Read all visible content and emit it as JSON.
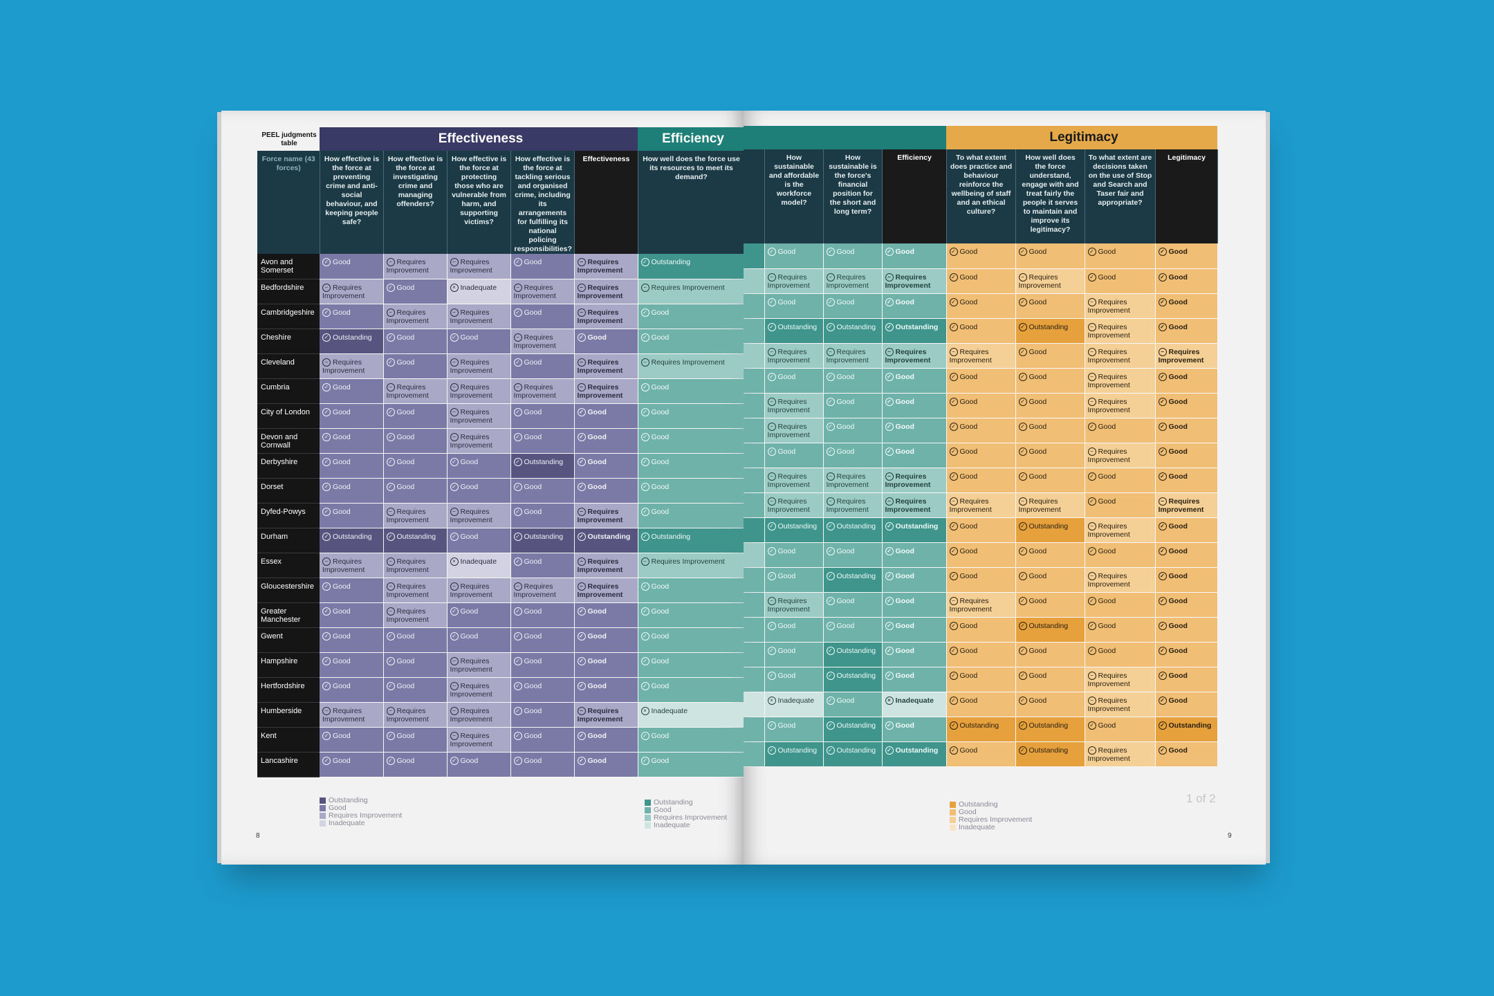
{
  "header": {
    "corner_title": "PEEL judgments table",
    "force_col_label": "Force name (43 forces)",
    "band_effectiveness": "Effectiveness",
    "band_efficiency": "Efficiency",
    "band_legitimacy": "Legitimacy"
  },
  "questions": {
    "eff": [
      "How effective is the force at preventing crime and anti-social behaviour, and keeping people safe?",
      "How effective is the force at investigating crime and managing offenders?",
      "How effective is the force at protecting those who are vulnerable from harm, and supporting victims?",
      "How effective is the force at tackling serious and organised crime, including its arrangements for fulfilling its national policing responsibilities?",
      "Effectiveness"
    ],
    "effi": [
      "How well does the force use its resources to meet its demand?",
      "How sustainable and affordable is the workforce model?",
      "How sustainable is the force's financial position for the short and long term?",
      "Efficiency"
    ],
    "leg": [
      "To what extent does practice and behaviour reinforce the wellbeing of staff and an ethical culture?",
      "How well does the force understand, engage with and treat fairly the people it serves to maintain and improve its legitimacy?",
      "To what extent are decisions taken on the use of Stop and Search and Taser fair and appropriate?",
      "Legitimacy"
    ]
  },
  "forces": [
    {
      "name": "Avon and Somerset",
      "eff": [
        "Good",
        "Requires Improvement",
        "Requires Improvement",
        "Good",
        "Requires Improvement"
      ],
      "effi": [
        "Outstanding",
        "Good",
        "Good",
        "Good"
      ],
      "leg": [
        "Good",
        "Good",
        "Good",
        "Good"
      ]
    },
    {
      "name": "Bedfordshire",
      "eff": [
        "Requires Improvement",
        "Good",
        "Inadequate",
        "Requires Improvement",
        "Requires Improvement"
      ],
      "effi": [
        "Requires Improvement",
        "Requires Improvement",
        "Requires Improvement",
        "Requires Improvement"
      ],
      "leg": [
        "Good",
        "Requires Improvement",
        "Good",
        "Good"
      ]
    },
    {
      "name": "Cambridgeshire",
      "eff": [
        "Good",
        "Requires Improvement",
        "Requires Improvement",
        "Good",
        "Requires Improvement"
      ],
      "effi": [
        "Good",
        "Good",
        "Good",
        "Good"
      ],
      "leg": [
        "Good",
        "Good",
        "Requires Improvement",
        "Good"
      ]
    },
    {
      "name": "Cheshire",
      "eff": [
        "Outstanding",
        "Good",
        "Good",
        "Requires Improvement",
        "Good"
      ],
      "effi": [
        "Good",
        "Outstanding",
        "Outstanding",
        "Outstanding"
      ],
      "leg": [
        "Good",
        "Outstanding",
        "Requires Improvement",
        "Good"
      ]
    },
    {
      "name": "Cleveland",
      "eff": [
        "Requires Improvement",
        "Good",
        "Requires Improvement",
        "Good",
        "Requires Improvement"
      ],
      "effi": [
        "Requires Improvement",
        "Requires Improvement",
        "Requires Improvement",
        "Requires Improvement"
      ],
      "leg": [
        "Requires Improvement",
        "Good",
        "Requires Improvement",
        "Requires Improvement"
      ]
    },
    {
      "name": "Cumbria",
      "eff": [
        "Good",
        "Requires Improvement",
        "Requires Improvement",
        "Requires Improvement",
        "Requires Improvement"
      ],
      "effi": [
        "Good",
        "Good",
        "Good",
        "Good"
      ],
      "leg": [
        "Good",
        "Good",
        "Requires Improvement",
        "Good"
      ]
    },
    {
      "name": "City of London",
      "eff": [
        "Good",
        "Good",
        "Requires Improvement",
        "Good",
        "Good"
      ],
      "effi": [
        "Good",
        "Requires Improvement",
        "Good",
        "Good"
      ],
      "leg": [
        "Good",
        "Good",
        "Requires Improvement",
        "Good"
      ]
    },
    {
      "name": "Devon and Cornwall",
      "eff": [
        "Good",
        "Good",
        "Requires Improvement",
        "Good",
        "Good"
      ],
      "effi": [
        "Good",
        "Requires Improvement",
        "Good",
        "Good"
      ],
      "leg": [
        "Good",
        "Good",
        "Good",
        "Good"
      ]
    },
    {
      "name": "Derbyshire",
      "eff": [
        "Good",
        "Good",
        "Good",
        "Outstanding",
        "Good"
      ],
      "effi": [
        "Good",
        "Good",
        "Good",
        "Good"
      ],
      "leg": [
        "Good",
        "Good",
        "Requires Improvement",
        "Good"
      ]
    },
    {
      "name": "Dorset",
      "eff": [
        "Good",
        "Good",
        "Good",
        "Good",
        "Good"
      ],
      "effi": [
        "Good",
        "Requires Improvement",
        "Requires Improvement",
        "Requires Improvement"
      ],
      "leg": [
        "Good",
        "Good",
        "Good",
        "Good"
      ]
    },
    {
      "name": "Dyfed-Powys",
      "eff": [
        "Good",
        "Requires Improvement",
        "Requires Improvement",
        "Good",
        "Requires Improvement"
      ],
      "effi": [
        "Good",
        "Requires Improvement",
        "Requires Improvement",
        "Requires Improvement"
      ],
      "leg": [
        "Requires Improvement",
        "Requires Improvement",
        "Good",
        "Requires Improvement"
      ]
    },
    {
      "name": "Durham",
      "eff": [
        "Outstanding",
        "Outstanding",
        "Good",
        "Outstanding",
        "Outstanding"
      ],
      "effi": [
        "Outstanding",
        "Outstanding",
        "Outstanding",
        "Outstanding"
      ],
      "leg": [
        "Good",
        "Outstanding",
        "Requires Improvement",
        "Good"
      ]
    },
    {
      "name": "Essex",
      "eff": [
        "Requires Improvement",
        "Requires Improvement",
        "Inadequate",
        "Good",
        "Requires Improvement"
      ],
      "effi": [
        "Requires Improvement",
        "Good",
        "Good",
        "Good"
      ],
      "leg": [
        "Good",
        "Good",
        "Good",
        "Good"
      ]
    },
    {
      "name": "Gloucestershire",
      "eff": [
        "Good",
        "Requires Improvement",
        "Requires Improvement",
        "Requires Improvement",
        "Requires Improvement"
      ],
      "effi": [
        "Good",
        "Good",
        "Outstanding",
        "Good"
      ],
      "leg": [
        "Good",
        "Good",
        "Requires Improvement",
        "Good"
      ]
    },
    {
      "name": "Greater Manchester",
      "eff": [
        "Good",
        "Requires Improvement",
        "Good",
        "Good",
        "Good"
      ],
      "effi": [
        "Good",
        "Requires Improvement",
        "Good",
        "Good"
      ],
      "leg": [
        "Requires Improvement",
        "Good",
        "Good",
        "Good"
      ]
    },
    {
      "name": "Gwent",
      "eff": [
        "Good",
        "Good",
        "Good",
        "Good",
        "Good"
      ],
      "effi": [
        "Good",
        "Good",
        "Good",
        "Good"
      ],
      "leg": [
        "Good",
        "Outstanding",
        "Good",
        "Good"
      ]
    },
    {
      "name": "Hampshire",
      "eff": [
        "Good",
        "Good",
        "Requires Improvement",
        "Good",
        "Good"
      ],
      "effi": [
        "Good",
        "Good",
        "Outstanding",
        "Good"
      ],
      "leg": [
        "Good",
        "Good",
        "Good",
        "Good"
      ]
    },
    {
      "name": "Hertfordshire",
      "eff": [
        "Good",
        "Good",
        "Requires Improvement",
        "Good",
        "Good"
      ],
      "effi": [
        "Good",
        "Good",
        "Outstanding",
        "Good"
      ],
      "leg": [
        "Good",
        "Good",
        "Requires Improvement",
        "Good"
      ]
    },
    {
      "name": "Humberside",
      "eff": [
        "Requires Improvement",
        "Requires Improvement",
        "Requires Improvement",
        "Good",
        "Requires Improvement"
      ],
      "effi": [
        "Inadequate",
        "Inadequate",
        "Good",
        "Inadequate"
      ],
      "leg": [
        "Good",
        "Good",
        "Requires Improvement",
        "Good"
      ]
    },
    {
      "name": "Kent",
      "eff": [
        "Good",
        "Good",
        "Requires Improvement",
        "Good",
        "Good"
      ],
      "effi": [
        "Good",
        "Good",
        "Outstanding",
        "Good"
      ],
      "leg": [
        "Outstanding",
        "Outstanding",
        "Good",
        "Outstanding"
      ]
    },
    {
      "name": "Lancashire",
      "eff": [
        "Good",
        "Good",
        "Good",
        "Good",
        "Good"
      ],
      "effi": [
        "Good",
        "Outstanding",
        "Outstanding",
        "Outstanding"
      ],
      "leg": [
        "Good",
        "Outstanding",
        "Requires Improvement",
        "Good"
      ]
    }
  ],
  "legend_items": [
    "Outstanding",
    "Good",
    "Requires Improvement",
    "Inadequate"
  ],
  "colors": {
    "effectiveness": [
      "#57547f",
      "#7b7aa6",
      "#a9a8c6",
      "#d3d2e2"
    ],
    "efficiency": [
      "#3f948b",
      "#6fb2aa",
      "#9ccac4",
      "#cde4e0"
    ],
    "legitimacy": [
      "#e6a13c",
      "#f0bf75",
      "#f4cf96",
      "#f9e5c6"
    ]
  },
  "footer": {
    "page_left": "8",
    "page_right": "9",
    "page_indicator": "1 of 2"
  }
}
